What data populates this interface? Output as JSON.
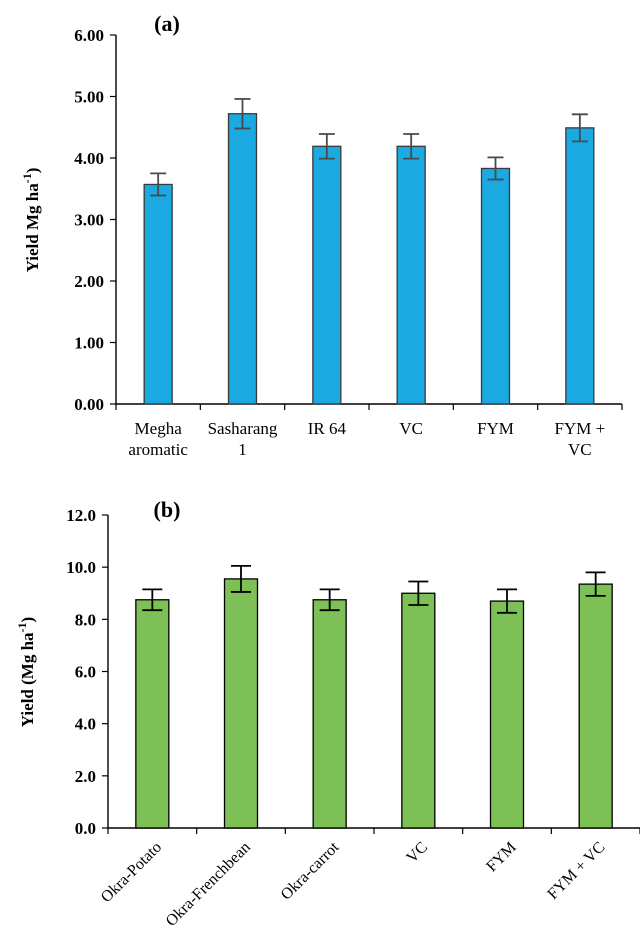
{
  "chart_data": [
    {
      "type": "bar",
      "panel_label": "(a)",
      "ylabel": "Yield Mg ha",
      "ylabel_sup": "-1",
      "ylabel_close": ")",
      "ylim": [
        0,
        6
      ],
      "yticks": [
        "0.00",
        "1.00",
        "2.00",
        "3.00",
        "4.00",
        "5.00",
        "6.00"
      ],
      "categories": [
        [
          "Megha",
          "aromatic"
        ],
        [
          "Sasharang",
          "1"
        ],
        [
          "IR 64"
        ],
        [
          "VC"
        ],
        [
          "FYM"
        ],
        [
          "FYM +",
          "VC"
        ]
      ],
      "values": [
        3.57,
        4.72,
        4.19,
        4.19,
        3.83,
        4.49
      ],
      "errors": [
        0.18,
        0.24,
        0.2,
        0.2,
        0.18,
        0.22
      ],
      "bar_color": "#1ba9e1",
      "grid": false,
      "legend": false
    },
    {
      "type": "bar",
      "panel_label": "(b)",
      "ylabel": "Yield (Mg ha",
      "ylabel_sup": "-1",
      "ylabel_close": ")",
      "ylim": [
        0,
        12
      ],
      "yticks": [
        "0.0",
        "2.0",
        "4.0",
        "6.0",
        "8.0",
        "10.0",
        "12.0"
      ],
      "categories": [
        [
          "Okra-Potato"
        ],
        [
          "Okra-Frenchbean"
        ],
        [
          "Okra-carrot"
        ],
        [
          "VC"
        ],
        [
          "FYM"
        ],
        [
          "FYM + VC"
        ]
      ],
      "values": [
        8.75,
        9.55,
        8.75,
        9.0,
        8.7,
        9.35
      ],
      "errors": [
        0.4,
        0.5,
        0.4,
        0.45,
        0.45,
        0.45
      ],
      "bar_color": "#7dc055",
      "grid": false,
      "legend": false
    }
  ]
}
